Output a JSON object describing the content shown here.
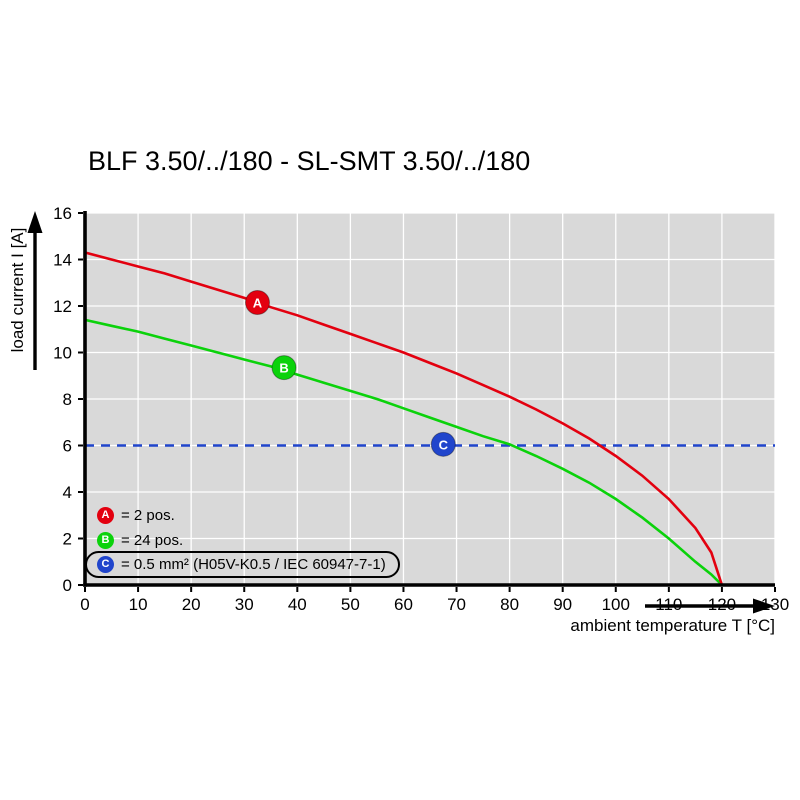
{
  "title": "BLF 3.50/../180 - SL-SMT 3.50/../180",
  "chart_data": {
    "type": "line",
    "title": "BLF 3.50/../180 - SL-SMT 3.50/../180",
    "xlabel": "ambient temperature T [°C]",
    "ylabel": "load current I [A]",
    "xlim": [
      0,
      130
    ],
    "ylim": [
      0,
      16
    ],
    "x_ticks": [
      0,
      10,
      20,
      30,
      40,
      50,
      60,
      70,
      80,
      90,
      100,
      110,
      120,
      130
    ],
    "y_ticks": [
      0,
      2,
      4,
      6,
      8,
      10,
      12,
      14,
      16
    ],
    "grid": true,
    "plot_bg": "#d9d9d9",
    "grid_color": "#ffffff",
    "axis_color": "#000000",
    "series": [
      {
        "name": "C",
        "label": "0.5 mm² (H05V-K0.5 / IEC 60947-7-1)",
        "color": "#2045cc",
        "dash": true,
        "points": [
          [
            0,
            6
          ],
          [
            130,
            6
          ]
        ],
        "marker": [
          67.5,
          6.05
        ]
      },
      {
        "name": "B",
        "label": "24 pos.",
        "color": "#0bd20b",
        "dash": false,
        "points": [
          [
            0,
            11.4
          ],
          [
            5,
            11.15
          ],
          [
            10,
            10.9
          ],
          [
            15,
            10.6
          ],
          [
            20,
            10.3
          ],
          [
            25,
            10.0
          ],
          [
            30,
            9.7
          ],
          [
            35,
            9.4
          ],
          [
            40,
            9.05
          ],
          [
            45,
            8.7
          ],
          [
            50,
            8.35
          ],
          [
            55,
            8.0
          ],
          [
            60,
            7.6
          ],
          [
            65,
            7.2
          ],
          [
            70,
            6.8
          ],
          [
            75,
            6.4
          ],
          [
            80,
            6.05
          ],
          [
            85,
            5.55
          ],
          [
            90,
            5.0
          ],
          [
            95,
            4.4
          ],
          [
            100,
            3.7
          ],
          [
            105,
            2.9
          ],
          [
            110,
            2.0
          ],
          [
            115,
            1.0
          ],
          [
            118,
            0.45
          ],
          [
            120,
            0
          ]
        ],
        "marker": [
          37.5,
          9.35
        ]
      },
      {
        "name": "A",
        "label": "2 pos.",
        "color": "#e3000f",
        "dash": false,
        "points": [
          [
            0,
            14.3
          ],
          [
            5,
            14.0
          ],
          [
            10,
            13.7
          ],
          [
            15,
            13.4
          ],
          [
            20,
            13.05
          ],
          [
            25,
            12.7
          ],
          [
            30,
            12.35
          ],
          [
            35,
            11.95
          ],
          [
            40,
            11.6
          ],
          [
            45,
            11.2
          ],
          [
            50,
            10.8
          ],
          [
            55,
            10.4
          ],
          [
            60,
            10.0
          ],
          [
            65,
            9.55
          ],
          [
            70,
            9.1
          ],
          [
            75,
            8.6
          ],
          [
            80,
            8.1
          ],
          [
            85,
            7.55
          ],
          [
            90,
            6.95
          ],
          [
            95,
            6.3
          ],
          [
            100,
            5.55
          ],
          [
            105,
            4.7
          ],
          [
            110,
            3.7
          ],
          [
            115,
            2.45
          ],
          [
            118,
            1.4
          ],
          [
            120,
            0
          ]
        ],
        "marker": [
          32.5,
          12.15
        ]
      }
    ],
    "legend": [
      {
        "key": "A",
        "text": "= 2 pos."
      },
      {
        "key": "B",
        "text": "= 24 pos."
      },
      {
        "key": "C",
        "text": "= 0.5 mm² (H05V-K0.5 / IEC 60947-7-1)",
        "boxed": true
      }
    ]
  }
}
